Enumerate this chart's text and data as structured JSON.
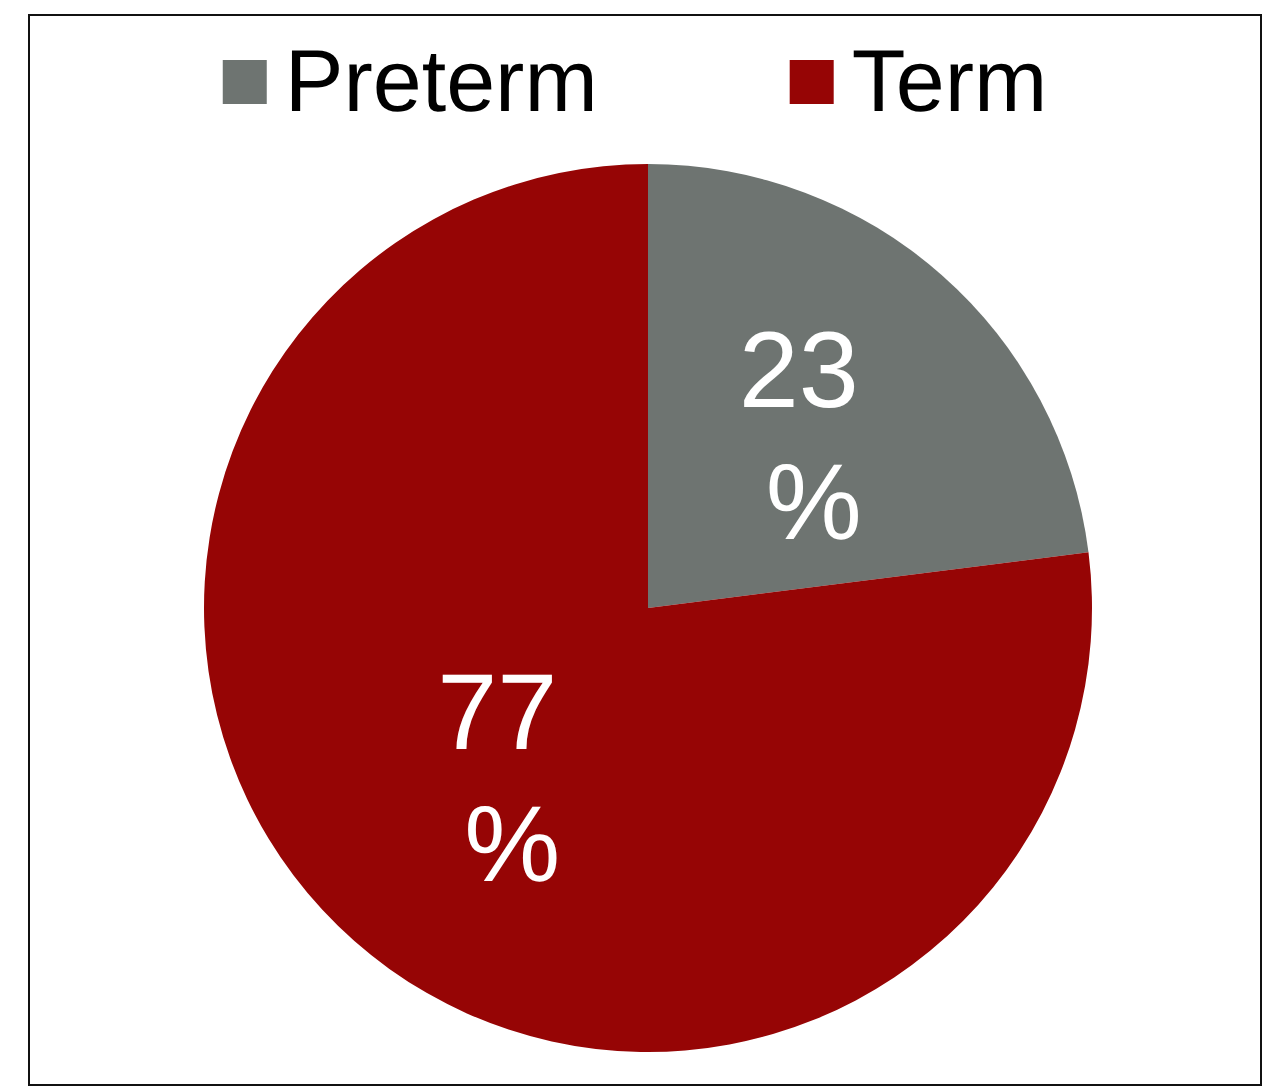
{
  "chart_data": {
    "type": "pie",
    "categories": [
      "Preterm",
      "Term"
    ],
    "values": [
      23,
      77
    ],
    "colors": [
      "#6e7471",
      "#960505"
    ],
    "legend": "top",
    "value_labels": [
      "23 %",
      "77 %"
    ]
  }
}
